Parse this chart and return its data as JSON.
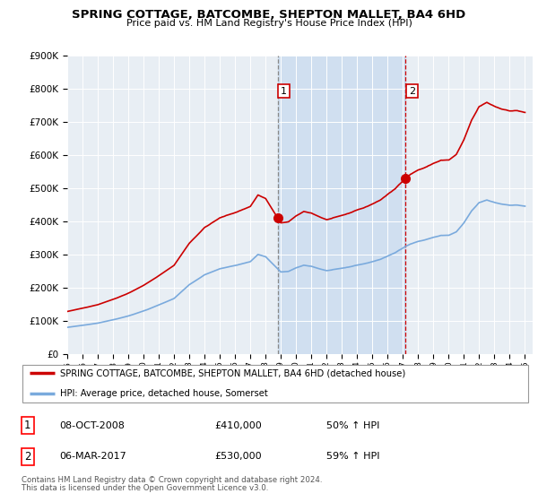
{
  "title": "SPRING COTTAGE, BATCOMBE, SHEPTON MALLET, BA4 6HD",
  "subtitle": "Price paid vs. HM Land Registry's House Price Index (HPI)",
  "legend_label_red": "SPRING COTTAGE, BATCOMBE, SHEPTON MALLET, BA4 6HD (detached house)",
  "legend_label_blue": "HPI: Average price, detached house, Somerset",
  "purchase1_date": "08-OCT-2008",
  "purchase1_price": 410000,
  "purchase1_pct": "50%",
  "purchase2_date": "06-MAR-2017",
  "purchase2_price": 530000,
  "purchase2_pct": "59%",
  "footer": "Contains HM Land Registry data © Crown copyright and database right 2024.\nThis data is licensed under the Open Government Licence v3.0.",
  "ylim": [
    0,
    900000
  ],
  "yticks": [
    0,
    100000,
    200000,
    300000,
    400000,
    500000,
    600000,
    700000,
    800000,
    900000
  ],
  "background_color": "#ffffff",
  "plot_bg_color": "#e8eef4",
  "shade_color": "#d0dff0",
  "red_color": "#cc0000",
  "blue_color": "#7aaadd",
  "shade_x_start": 2008.79,
  "shade_x_end": 2017.17,
  "vline1_x": 2008.79,
  "vline2_x": 2017.17,
  "xmin": 1995,
  "xmax": 2025.5
}
